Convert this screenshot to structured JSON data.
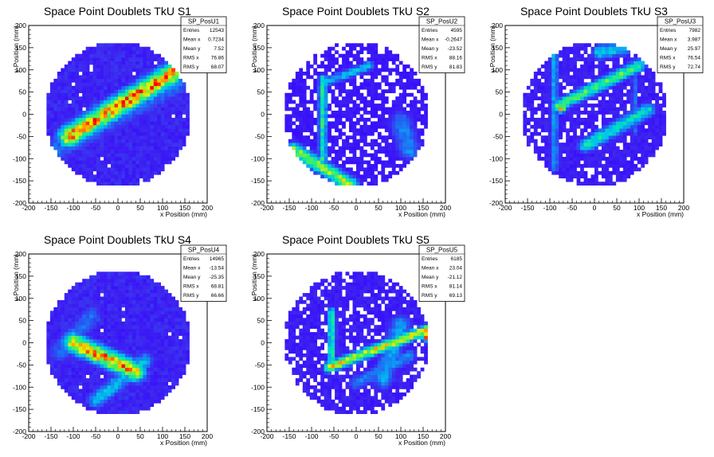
{
  "chart_data": [
    {
      "type": "heatmap",
      "title": "Space Point Doublets TkU S1",
      "xlabel": "x Position (mm)",
      "ylabel": "y Position (mm)",
      "xlim": [
        -200,
        200
      ],
      "ylim": [
        -200,
        200
      ],
      "xticks": [
        "-200",
        "-150",
        "-100",
        "-50",
        "0",
        "50",
        "100",
        "150",
        "200"
      ],
      "yticks": [
        "-200",
        "-150",
        "-100",
        "-50",
        "0",
        "50",
        "100",
        "150",
        "200"
      ],
      "stats": {
        "name": "SP_PosU1",
        "rows": [
          {
            "label": "Entries",
            "value": "12543"
          },
          {
            "label": "Mean x",
            "value": "0.7234"
          },
          {
            "label": "Mean y",
            "value": "7.52"
          },
          {
            "label": "RMS x",
            "value": "76.86"
          },
          {
            "label": "RMS y",
            "value": "68.07"
          }
        ]
      },
      "features": [
        {
          "kind": "band",
          "from": [
            -110,
            -50
          ],
          "to": [
            150,
            110
          ],
          "intensity": 0.95,
          "width": 18
        },
        {
          "kind": "band",
          "from": [
            -30,
            5
          ],
          "to": [
            40,
            48
          ],
          "intensity": 1.0,
          "width": 10
        },
        {
          "kind": "band",
          "from": [
            -150,
            -85
          ],
          "to": [
            150,
            80
          ],
          "intensity": 0.3,
          "width": 24
        }
      ],
      "background": 0.12,
      "sparsity": 0.02
    },
    {
      "type": "heatmap",
      "title": "Space Point Doublets TkU S2",
      "xlabel": "x Position (mm)",
      "ylabel": "y Position (mm)",
      "xlim": [
        -200,
        200
      ],
      "ylim": [
        -200,
        200
      ],
      "xticks": [
        "-200",
        "-150",
        "-100",
        "-50",
        "0",
        "50",
        "100",
        "150",
        "200"
      ],
      "yticks": [
        "-200",
        "-150",
        "-100",
        "-50",
        "0",
        "50",
        "100",
        "150",
        "200"
      ],
      "stats": {
        "name": "SP_PosU2",
        "rows": [
          {
            "label": "Entries",
            "value": "4595"
          },
          {
            "label": "Mean x",
            "value": "-0.2647"
          },
          {
            "label": "Mean y",
            "value": "-23.52"
          },
          {
            "label": "RMS x",
            "value": "88.16"
          },
          {
            "label": "RMS y",
            "value": "81.83"
          }
        ]
      },
      "features": [
        {
          "kind": "band",
          "from": [
            -140,
            -80
          ],
          "to": [
            -10,
            -160
          ],
          "intensity": 0.75,
          "width": 12
        },
        {
          "kind": "band",
          "from": [
            -75,
            80
          ],
          "to": [
            -75,
            -100
          ],
          "intensity": 0.6,
          "width": 7
        },
        {
          "kind": "band",
          "from": [
            -75,
            70
          ],
          "to": [
            30,
            110
          ],
          "intensity": 0.45,
          "width": 8
        },
        {
          "kind": "band",
          "from": [
            100,
            -20
          ],
          "to": [
            120,
            -80
          ],
          "intensity": 0.35,
          "width": 20
        }
      ],
      "background": 0.08,
      "sparsity": 0.28
    },
    {
      "type": "heatmap",
      "title": "Space Point Doublets TkU S3",
      "xlabel": "x Position (mm)",
      "ylabel": "y Position (mm)",
      "xlim": [
        -200,
        200
      ],
      "ylim": [
        -200,
        200
      ],
      "xticks": [
        "-200",
        "-150",
        "-100",
        "-50",
        "0",
        "50",
        "100",
        "150",
        "200"
      ],
      "yticks": [
        "-200",
        "-150",
        "-100",
        "-50",
        "0",
        "50",
        "100",
        "150",
        "200"
      ],
      "stats": {
        "name": "SP_PosU3",
        "rows": [
          {
            "label": "Entries",
            "value": "7982"
          },
          {
            "label": "Mean x",
            "value": "3.987"
          },
          {
            "label": "Mean y",
            "value": "25.97"
          },
          {
            "label": "RMS x",
            "value": "76.54"
          },
          {
            "label": "RMS y",
            "value": "72.74"
          }
        ]
      },
      "features": [
        {
          "kind": "band",
          "from": [
            -80,
            20
          ],
          "to": [
            100,
            110
          ],
          "intensity": 0.7,
          "width": 10
        },
        {
          "kind": "band",
          "from": [
            -20,
            -70
          ],
          "to": [
            120,
            10
          ],
          "intensity": 0.55,
          "width": 12
        },
        {
          "kind": "band",
          "from": [
            -90,
            150
          ],
          "to": [
            -90,
            -120
          ],
          "intensity": 0.4,
          "width": 7
        },
        {
          "kind": "band",
          "from": [
            10,
            140
          ],
          "to": [
            70,
            150
          ],
          "intensity": 0.5,
          "width": 12
        },
        {
          "kind": "band",
          "from": [
            90,
            120
          ],
          "to": [
            90,
            -40
          ],
          "intensity": 0.3,
          "width": 6
        },
        {
          "kind": "spot",
          "at": [
            -75,
            15
          ],
          "intensity": 1.0,
          "r": 8
        }
      ],
      "background": 0.1,
      "sparsity": 0.16
    },
    {
      "type": "heatmap",
      "title": "Space Point Doublets TkU S4",
      "xlabel": "x Position (mm)",
      "ylabel": "y Position (mm)",
      "xlim": [
        -200,
        200
      ],
      "ylim": [
        -200,
        200
      ],
      "xticks": [
        "-200",
        "-150",
        "-100",
        "-50",
        "0",
        "50",
        "100",
        "150",
        "200"
      ],
      "yticks": [
        "-200",
        "-150",
        "-100",
        "-50",
        "0",
        "50",
        "100",
        "150",
        "200"
      ],
      "stats": {
        "name": "SP_PosU4",
        "rows": [
          {
            "label": "Entries",
            "value": "14965"
          },
          {
            "label": "Mean x",
            "value": "-13.54"
          },
          {
            "label": "Mean y",
            "value": "-25.35"
          },
          {
            "label": "RMS x",
            "value": "68.81"
          },
          {
            "label": "RMS y",
            "value": "66.66"
          }
        ]
      },
      "features": [
        {
          "kind": "band",
          "from": [
            -100,
            0
          ],
          "to": [
            40,
            -65
          ],
          "intensity": 0.95,
          "width": 16
        },
        {
          "kind": "band",
          "from": [
            -30,
            -35
          ],
          "to": [
            25,
            -60
          ],
          "intensity": 1.0,
          "width": 8
        },
        {
          "kind": "band",
          "from": [
            -50,
            -130
          ],
          "to": [
            60,
            -40
          ],
          "intensity": 0.45,
          "width": 14
        },
        {
          "kind": "band",
          "from": [
            -130,
            -20
          ],
          "to": [
            -60,
            60
          ],
          "intensity": 0.3,
          "width": 20
        }
      ],
      "background": 0.12,
      "sparsity": 0.02
    },
    {
      "type": "heatmap",
      "title": "Space Point Doublets TkU S5",
      "xlabel": "x Position (mm)",
      "ylabel": "y Position (mm)",
      "xlim": [
        -200,
        200
      ],
      "ylim": [
        -200,
        200
      ],
      "xticks": [
        "-200",
        "-150",
        "-100",
        "-50",
        "0",
        "50",
        "100",
        "150",
        "200"
      ],
      "yticks": [
        "-200",
        "-150",
        "-100",
        "-50",
        "0",
        "50",
        "100",
        "150",
        "200"
      ],
      "stats": {
        "name": "SP_PosU5",
        "rows": [
          {
            "label": "Entries",
            "value": "6185"
          },
          {
            "label": "Mean x",
            "value": "23.04"
          },
          {
            "label": "Mean y",
            "value": "-21.12"
          },
          {
            "label": "RMS x",
            "value": "81.14"
          },
          {
            "label": "RMS y",
            "value": "69.13"
          }
        ]
      },
      "features": [
        {
          "kind": "band",
          "from": [
            -60,
            -55
          ],
          "to": [
            160,
            30
          ],
          "intensity": 0.85,
          "width": 9
        },
        {
          "kind": "band",
          "from": [
            -55,
            70
          ],
          "to": [
            -55,
            -55
          ],
          "intensity": 0.6,
          "width": 7
        },
        {
          "kind": "band",
          "from": [
            100,
            40
          ],
          "to": [
            60,
            -80
          ],
          "intensity": 0.4,
          "width": 18
        },
        {
          "kind": "band",
          "from": [
            0,
            -90
          ],
          "to": [
            120,
            -30
          ],
          "intensity": 0.35,
          "width": 12
        },
        {
          "kind": "spot",
          "at": [
            155,
            15
          ],
          "intensity": 1.0,
          "r": 8
        }
      ],
      "background": 0.1,
      "sparsity": 0.22
    }
  ]
}
